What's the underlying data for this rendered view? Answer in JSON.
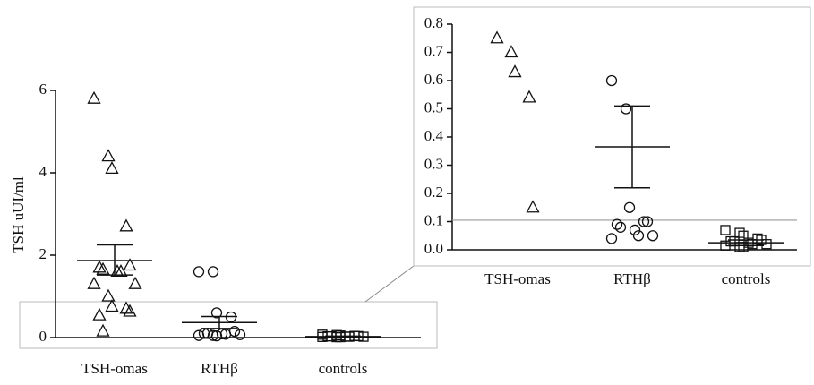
{
  "chart_data": [
    {
      "type": "dotplot",
      "y_label": "TSH uUI/ml",
      "categories": [
        "TSH-omas",
        "RTHβ",
        "controls"
      ],
      "markers": [
        "triangle",
        "circle",
        "square"
      ],
      "points": [
        [
          5.8,
          4.4,
          4.1,
          2.7,
          1.75,
          1.7,
          1.65,
          1.6,
          1.6,
          1.3,
          1.3,
          1.0,
          0.75,
          0.7,
          0.63,
          0.54,
          0.15
        ],
        [
          1.6,
          1.6,
          0.6,
          0.5,
          0.15,
          0.1,
          0.1,
          0.09,
          0.08,
          0.07,
          0.05,
          0.05,
          0.04
        ],
        [
          0.07,
          0.06,
          0.05,
          0.04,
          0.035,
          0.03,
          0.03,
          0.025,
          0.02,
          0.02,
          0.015,
          0.01,
          0.01
        ]
      ],
      "mean": [
        1.87,
        0.365,
        0.025
      ],
      "sem_upper": [
        2.25,
        0.51,
        0.035
      ],
      "sem_lower": [
        1.52,
        0.22,
        0.015
      ],
      "ylim": [
        0,
        6
      ],
      "yticks": [
        0,
        2,
        4,
        6
      ]
    },
    {
      "type": "dotplot",
      "categories": [
        "TSH-omas",
        "RTHβ",
        "controls"
      ],
      "markers": [
        "triangle",
        "circle",
        "square"
      ],
      "points": [
        [
          0.75,
          0.7,
          0.63,
          0.54,
          0.15
        ],
        [
          0.6,
          0.5,
          0.15,
          0.1,
          0.1,
          0.09,
          0.08,
          0.07,
          0.05,
          0.05,
          0.04
        ],
        [
          0.07,
          0.06,
          0.05,
          0.04,
          0.035,
          0.03,
          0.03,
          0.025,
          0.02,
          0.02,
          0.015,
          0.01,
          0.01
        ]
      ],
      "mean": [
        1.87,
        0.365,
        0.025
      ],
      "sem_upper": [
        2.25,
        0.51,
        0.035
      ],
      "sem_lower": [
        1.52,
        0.22,
        0.015
      ],
      "hline": 0.105,
      "ylim": [
        0,
        0.8
      ],
      "yticks": [
        {
          "value": 0,
          "label": "0.0"
        },
        {
          "value": 0.1,
          "label": "0.1"
        },
        {
          "value": 0.2,
          "label": "0.2"
        },
        {
          "value": 0.3,
          "label": "0.3"
        },
        {
          "value": 0.4,
          "label": "0.4"
        },
        {
          "value": 0.5,
          "label": "0.5"
        },
        {
          "value": 0.6,
          "label": "0.6"
        },
        {
          "value": 0.7,
          "label": "0.7"
        },
        {
          "value": 0.8,
          "label": "0.8"
        }
      ]
    }
  ]
}
